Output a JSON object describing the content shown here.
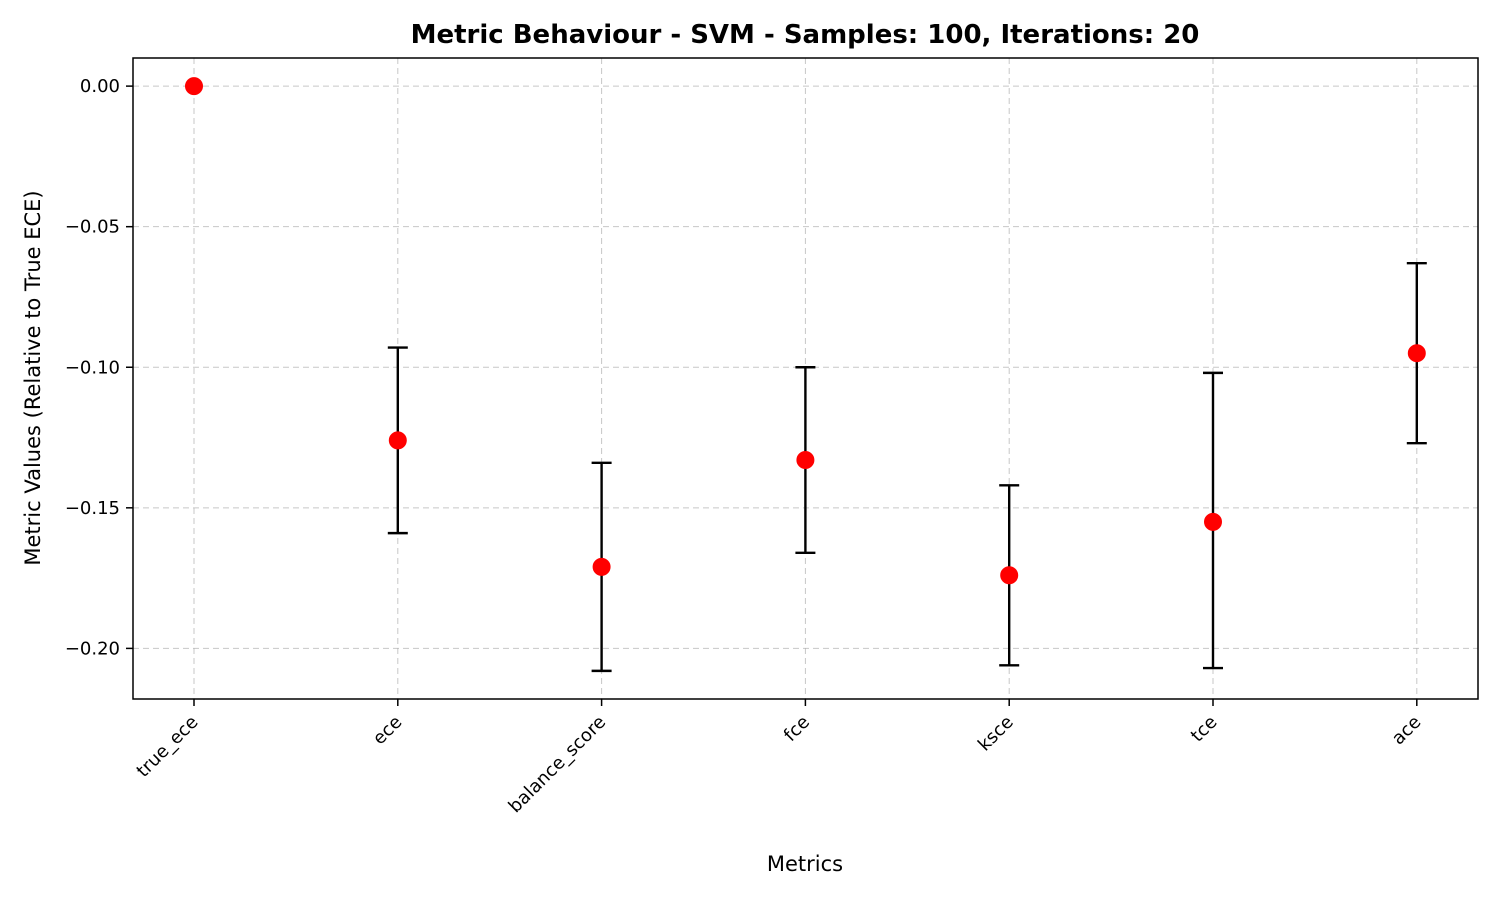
{
  "chart_data": {
    "type": "scatter",
    "title": "Metric Behaviour - SVM - Samples: 100, Iterations: 20",
    "xlabel": "Metrics",
    "ylabel": "Metric Values (Relative to True ECE)",
    "categories": [
      "true_ece",
      "ece",
      "balance_score",
      "fce",
      "ksce",
      "tce",
      "ace"
    ],
    "values": [
      0.0,
      -0.126,
      -0.171,
      -0.133,
      -0.174,
      -0.155,
      -0.095
    ],
    "error_low": [
      0.0,
      -0.159,
      -0.208,
      -0.166,
      -0.206,
      -0.207,
      -0.127
    ],
    "error_high": [
      0.0,
      -0.093,
      -0.134,
      -0.1,
      -0.142,
      -0.102,
      -0.063
    ],
    "ylim": [
      -0.218,
      0.01
    ],
    "yticks": [
      "0.00",
      "−0.05",
      "−0.10",
      "−0.15",
      "−0.20"
    ],
    "ytick_values": [
      0.0,
      -0.05,
      -0.1,
      -0.15,
      -0.2
    ],
    "grid": true,
    "marker_color": "#ff0000",
    "errorbar_color": "#000000"
  }
}
